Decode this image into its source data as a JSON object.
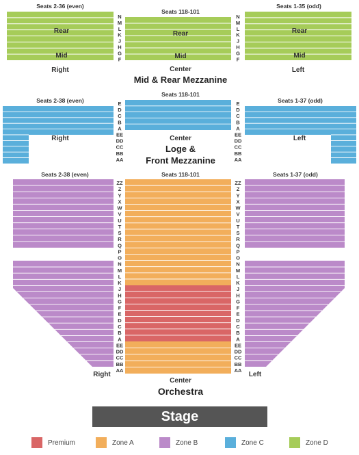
{
  "colors": {
    "premium": "#D96666",
    "zone_a": "#F2AE5B",
    "zone_b": "#BB8AC9",
    "zone_c": "#5AAFDB",
    "zone_d": "#A6CC59",
    "row_line": "#ffffff",
    "stage": "#555555"
  },
  "mid_rear": {
    "seats_left": "Seats 2-36 (even)",
    "seats_center": "Seats 118-101",
    "seats_right": "Seats 1-35 (odd)",
    "rows": [
      "N",
      "M",
      "L",
      "K",
      "J",
      "H",
      "G",
      "F"
    ],
    "rear_label": "Rear",
    "mid_label": "Mid",
    "side_left": "Right",
    "side_center": "Center",
    "side_right": "Left",
    "title": "Mid & Rear Mezzanine"
  },
  "loge": {
    "seats_left": "Seats 2-38 (even)",
    "seats_center": "Seats 118-101",
    "seats_right": "Seats 1-37 (odd)",
    "rows": [
      "E",
      "D",
      "C",
      "B",
      "A",
      "EE",
      "DD",
      "CC",
      "BB",
      "AA"
    ],
    "side_left": "Right",
    "side_center": "Center",
    "side_right": "Left",
    "title_line1": "Loge &",
    "title_line2": "Front Mezzanine"
  },
  "orchestra": {
    "seats_left": "Seats 2-38 (even)",
    "seats_center": "Seats 118-101",
    "seats_right": "Seats 1-37 (odd)",
    "rows": [
      "ZZ",
      "Z",
      "Y",
      "X",
      "W",
      "V",
      "U",
      "T",
      "S",
      "R",
      "Q",
      "P",
      "O",
      "N",
      "M",
      "L",
      "K",
      "J",
      "H",
      "G",
      "F",
      "E",
      "D",
      "C",
      "B",
      "A",
      "EE",
      "DD",
      "CC",
      "BB",
      "AA"
    ],
    "side_left": "Right",
    "side_center": "Center",
    "side_right": "Left",
    "title": "Orchestra"
  },
  "stage": "Stage",
  "legend": [
    {
      "label": "Premium",
      "color": "#D96666"
    },
    {
      "label": "Zone A",
      "color": "#F2AE5B"
    },
    {
      "label": "Zone B",
      "color": "#BB8AC9"
    },
    {
      "label": "Zone C",
      "color": "#5AAFDB"
    },
    {
      "label": "Zone D",
      "color": "#A6CC59"
    }
  ]
}
